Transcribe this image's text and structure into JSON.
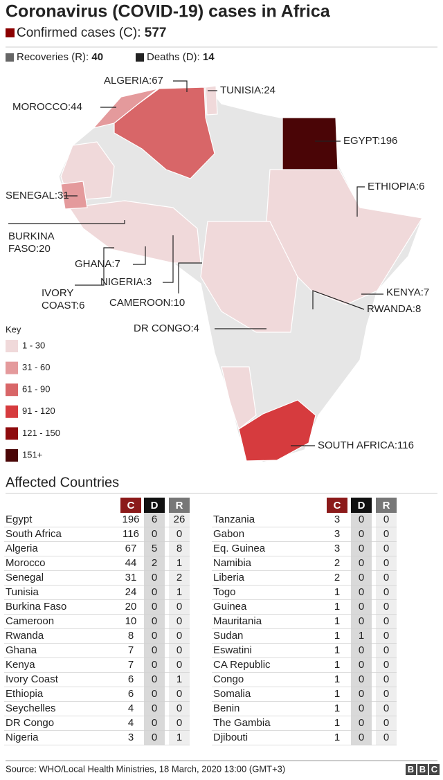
{
  "header": {
    "title": "Coronavirus (COVID-19) cases in Africa",
    "confirmed_label": "Confirmed cases (C):",
    "confirmed": 577,
    "recoveries_label": "Recoveries (R):",
    "recoveries": 40,
    "deaths_label": "Deaths (D):",
    "deaths": 14
  },
  "map": {
    "labels": [
      {
        "lines": [
          "ALGERIA:67"
        ]
      },
      {
        "lines": [
          "MOROCCO:44"
        ]
      },
      {
        "lines": [
          "TUNISIA:24"
        ]
      },
      {
        "lines": [
          "EGYPT:196"
        ]
      },
      {
        "lines": [
          "SENEGAL:31"
        ]
      },
      {
        "lines": [
          "ETHIOPIA:6"
        ]
      },
      {
        "lines": [
          "BURKINA",
          "FASO:20"
        ]
      },
      {
        "lines": [
          "GHANA:7"
        ]
      },
      {
        "lines": [
          "NIGERIA:3"
        ]
      },
      {
        "lines": [
          "IVORY",
          "COAST:6"
        ]
      },
      {
        "lines": [
          "CAMEROON:10"
        ]
      },
      {
        "lines": [
          "KENYA:7"
        ]
      },
      {
        "lines": [
          "RWANDA:8"
        ]
      },
      {
        "lines": [
          "DR CONGO:4"
        ]
      },
      {
        "lines": [
          "SOUTH AFRICA:116"
        ]
      }
    ],
    "key": {
      "title": "Key",
      "items": [
        "1 - 30",
        "31 - 60",
        "61 - 90",
        "91 - 120",
        "121 - 150",
        "151+"
      ],
      "colors": [
        "#f0d9da",
        "#e49a9c",
        "#d86668",
        "#d63b3e",
        "#8e0a0d",
        "#4a0506"
      ]
    }
  },
  "table": {
    "title": "Affected Countries",
    "columns": [
      "C",
      "D",
      "R"
    ],
    "left_rows": [
      [
        "Egypt",
        196,
        6,
        26
      ],
      [
        "South Africa",
        116,
        0,
        0
      ],
      [
        "Algeria",
        67,
        5,
        8
      ],
      [
        "Morocco",
        44,
        2,
        1
      ],
      [
        "Senegal",
        31,
        0,
        2
      ],
      [
        "Tunisia",
        24,
        0,
        1
      ],
      [
        "Burkina Faso",
        20,
        0,
        0
      ],
      [
        "Cameroon",
        10,
        0,
        0
      ],
      [
        "Rwanda",
        8,
        0,
        0
      ],
      [
        "Ghana",
        7,
        0,
        0
      ],
      [
        "Kenya",
        7,
        0,
        0
      ],
      [
        "Ivory Coast",
        6,
        0,
        1
      ],
      [
        "Ethiopia",
        6,
        0,
        0
      ],
      [
        "Seychelles",
        4,
        0,
        0
      ],
      [
        "DR Congo",
        4,
        0,
        0
      ],
      [
        "Nigeria",
        3,
        0,
        1
      ]
    ],
    "right_rows": [
      [
        "Tanzania",
        3,
        0,
        0
      ],
      [
        "Gabon",
        3,
        0,
        0
      ],
      [
        "Eq. Guinea",
        3,
        0,
        0
      ],
      [
        "Namibia",
        2,
        0,
        0
      ],
      [
        "Liberia",
        2,
        0,
        0
      ],
      [
        "Togo",
        1,
        0,
        0
      ],
      [
        "Guinea",
        1,
        0,
        0
      ],
      [
        "Mauritania",
        1,
        0,
        0
      ],
      [
        "Sudan",
        1,
        1,
        0
      ],
      [
        "Eswatini",
        1,
        0,
        0
      ],
      [
        "CA Republic",
        1,
        0,
        0
      ],
      [
        "Congo",
        1,
        0,
        0
      ],
      [
        "Somalia",
        1,
        0,
        0
      ],
      [
        "Benin",
        1,
        0,
        0
      ],
      [
        "The Gambia",
        1,
        0,
        0
      ],
      [
        "Djibouti",
        1,
        0,
        0
      ]
    ]
  },
  "footer": {
    "source": "Source: WHO/Local Health Ministries, 18 March, 2020  13:00 (GMT+3)",
    "logo": [
      "B",
      "B",
      "C"
    ]
  }
}
